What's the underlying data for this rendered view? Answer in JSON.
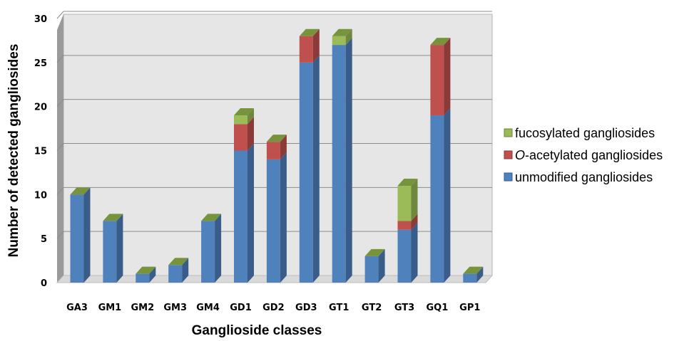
{
  "chart_data": {
    "type": "bar",
    "stacked": true,
    "three_d": true,
    "categories": [
      "GA3",
      "GM1",
      "GM2",
      "GM3",
      "GM4",
      "GD1",
      "GD2",
      "GD3",
      "GT1",
      "GT2",
      "GT3",
      "GQ1",
      "GP1"
    ],
    "series": [
      {
        "name": "unmodified gangliosides",
        "color": "#4f81bd",
        "values": [
          10,
          7,
          1,
          2,
          7,
          15,
          14,
          25,
          27,
          3,
          6,
          19,
          1
        ]
      },
      {
        "name": "O-acetylated gangliosides",
        "name_italic": "O",
        "name_rest": "-acetylated gangliosides",
        "color": "#c0504d",
        "values": [
          0,
          0,
          0,
          0,
          0,
          3,
          2,
          3,
          0,
          0,
          1,
          8,
          0
        ]
      },
      {
        "name": "fucosylated gangliosides",
        "color": "#9bbb59",
        "values": [
          0,
          0,
          0,
          0,
          0,
          1,
          0,
          0,
          1,
          0,
          4,
          0,
          0
        ]
      }
    ],
    "xlabel": "Ganglioside classes",
    "ylabel": "Number of detected gangliosides",
    "ylim": [
      0,
      30
    ],
    "yticks": [
      0,
      5,
      10,
      15,
      20,
      25,
      30
    ],
    "grid": true,
    "legend_position": "right",
    "legend_order": [
      2,
      1,
      0
    ]
  }
}
